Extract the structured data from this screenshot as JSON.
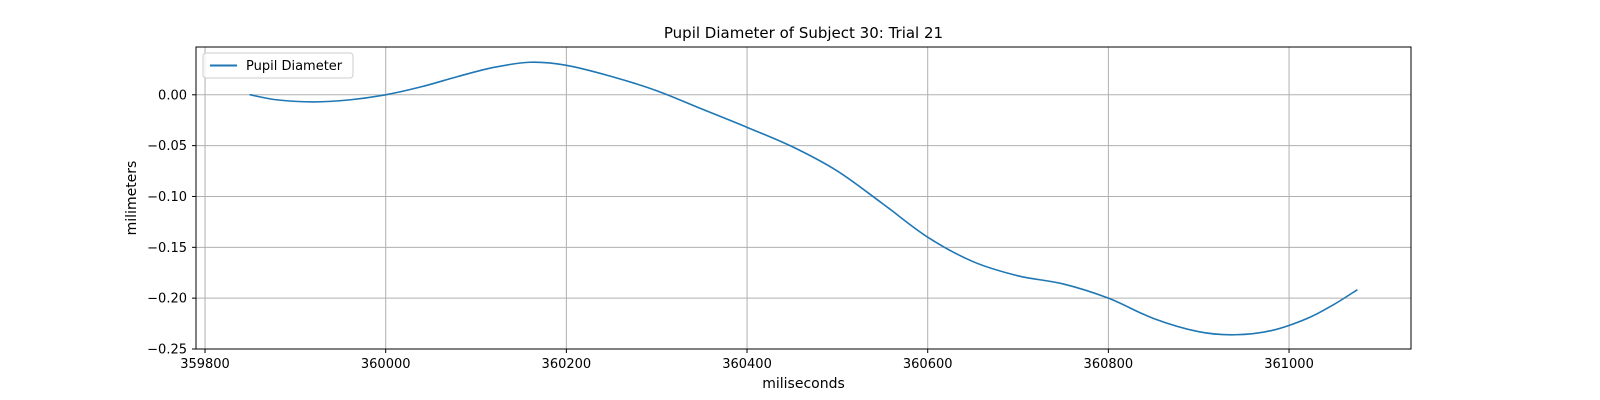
{
  "chart_data": {
    "type": "line",
    "title": "Pupil Diameter of Subject 30: Trial 21",
    "xlabel": "miliseconds",
    "ylabel": "milimeters",
    "xlim": [
      359790,
      361135
    ],
    "ylim": [
      -0.25,
      0.047
    ],
    "xticks": [
      359800,
      360000,
      360200,
      360400,
      360600,
      360800,
      361000
    ],
    "yticks": [
      0.0,
      -0.05,
      -0.1,
      -0.15,
      -0.2,
      -0.25
    ],
    "xtick_labels": [
      "359800",
      "360000",
      "360200",
      "360400",
      "360600",
      "360800",
      "361000"
    ],
    "ytick_labels": [
      "0.00",
      "−0.05",
      "−0.10",
      "−0.15",
      "−0.20",
      "−0.25"
    ],
    "grid": true,
    "legend_position": "top-left",
    "series": [
      {
        "name": "Pupil Diameter",
        "color": "#1f77b4",
        "x": [
          359850,
          359880,
          359920,
          359960,
          360000,
          360040,
          360080,
          360120,
          360160,
          360200,
          360250,
          360300,
          360350,
          360400,
          360450,
          360500,
          360550,
          360600,
          360650,
          360700,
          360750,
          360800,
          360850,
          360900,
          360940,
          360980,
          361020,
          361050,
          361075
        ],
        "y": [
          0.0,
          -0.005,
          -0.007,
          -0.005,
          0.0,
          0.008,
          0.018,
          0.027,
          0.032,
          0.029,
          0.018,
          0.004,
          -0.014,
          -0.032,
          -0.051,
          -0.075,
          -0.107,
          -0.14,
          -0.164,
          -0.178,
          -0.186,
          -0.2,
          -0.22,
          -0.233,
          -0.236,
          -0.232,
          -0.22,
          -0.206,
          -0.192
        ]
      }
    ]
  }
}
